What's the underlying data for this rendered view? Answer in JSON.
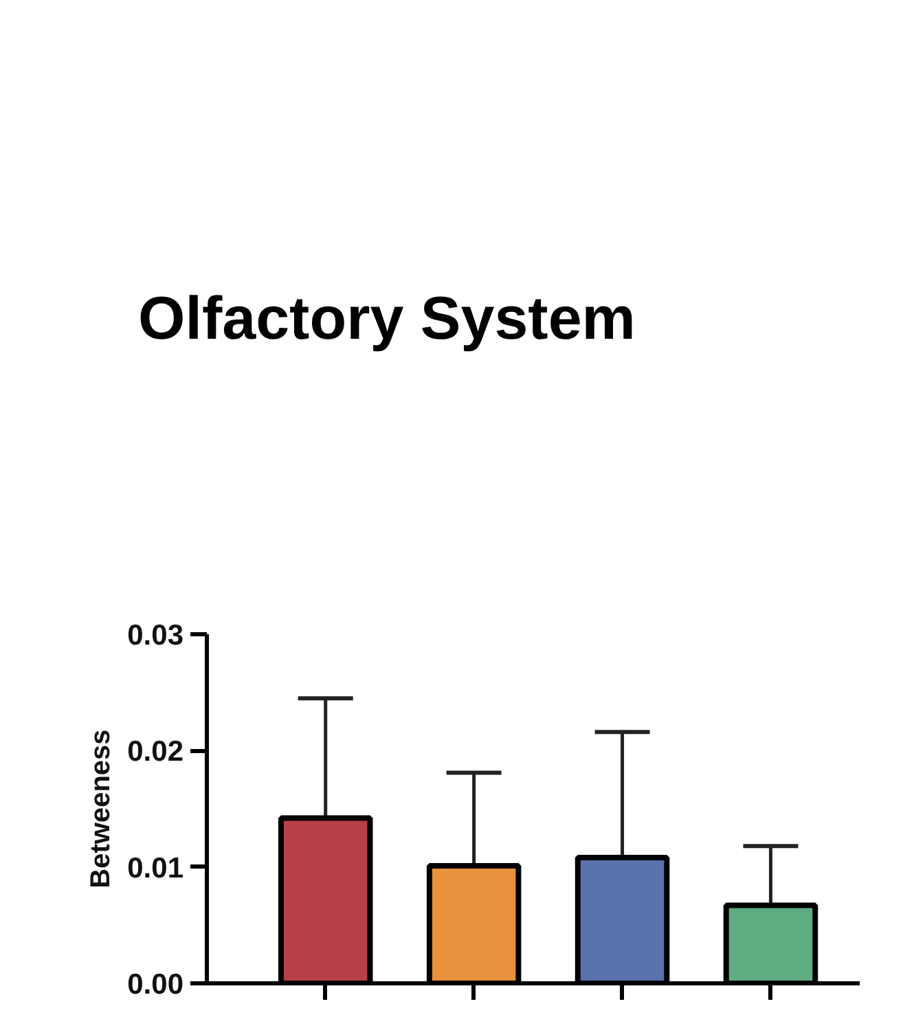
{
  "chart_data": {
    "type": "bar",
    "title": "Olfactory System",
    "ylabel": "Betweeness",
    "categories": [
      null,
      null,
      null,
      null
    ],
    "values": [
      0.0142,
      0.0101,
      0.0108,
      0.0067
    ],
    "colors": [
      "#b8404a",
      "#e8923e",
      "#5a72ae",
      "#5fac82"
    ],
    "errors": [
      [
        0.0142,
        0.0245
      ],
      [
        0.0101,
        0.0181
      ],
      [
        0.0108,
        0.0216
      ],
      [
        0.0067,
        0.0118
      ]
    ],
    "ylim": [
      0,
      0.03
    ],
    "yticks": [
      {
        "value": 0,
        "label": "0.00"
      },
      {
        "value": 0.01,
        "label": "0.01"
      },
      {
        "value": 0.02,
        "label": "0.02"
      },
      {
        "value": 0.03,
        "label": "0.03"
      }
    ],
    "grid": false
  }
}
